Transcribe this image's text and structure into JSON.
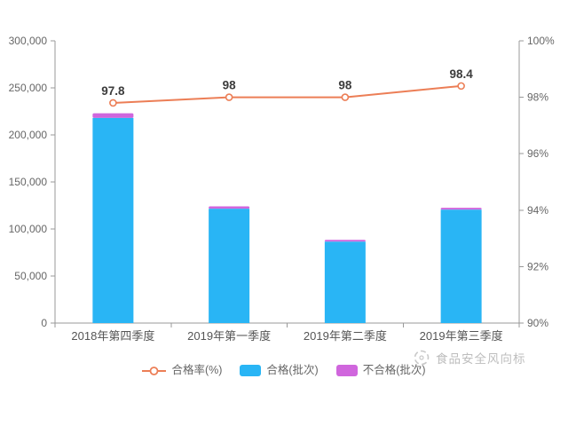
{
  "chart_data": {
    "type": "bar",
    "subtype": "stacked-bar-with-line-combo",
    "title": "",
    "categories": [
      "2018年第四季度",
      "2019年第一季度",
      "2019年第二季度",
      "2019年第三季度"
    ],
    "series": [
      {
        "name": "合格率(%)",
        "type": "line",
        "axis": "right",
        "values": [
          97.8,
          98,
          98,
          98.4
        ],
        "labels": [
          "97.8",
          "98",
          "98",
          "98.4"
        ],
        "color": "#ec7e56"
      },
      {
        "name": "合格(批次)",
        "type": "bar",
        "axis": "left",
        "stack": "total",
        "values": [
          218000,
          121500,
          86500,
          120500
        ],
        "color": "#29b5f5"
      },
      {
        "name": "不合格(批次)",
        "type": "bar",
        "axis": "left",
        "stack": "total",
        "values": [
          5000,
          2500,
          2000,
          2000
        ],
        "color": "#d066dd"
      }
    ],
    "left_axis": {
      "min": 0,
      "max": 300000,
      "tick_labels": [
        "0",
        "50,000",
        "100,000",
        "150,000",
        "200,000",
        "250,000",
        "300,000"
      ]
    },
    "right_axis": {
      "min": 90,
      "max": 100,
      "tick_labels": [
        "90%",
        "92%",
        "94%",
        "96%",
        "98%",
        "100%"
      ]
    },
    "grid": false,
    "legend_position": "bottom",
    "axis_color": "#999999",
    "tick_text_color": "#666666",
    "data_label_color": "#3c3c3c"
  },
  "legend": {
    "items": [
      {
        "label": "合格率(%)"
      },
      {
        "label": "合格(批次)"
      },
      {
        "label": "不合格(批次)"
      }
    ]
  },
  "watermark": {
    "text": "食品安全风向标",
    "icon": "compass-swirl-icon",
    "color": "#bdbdbd"
  }
}
